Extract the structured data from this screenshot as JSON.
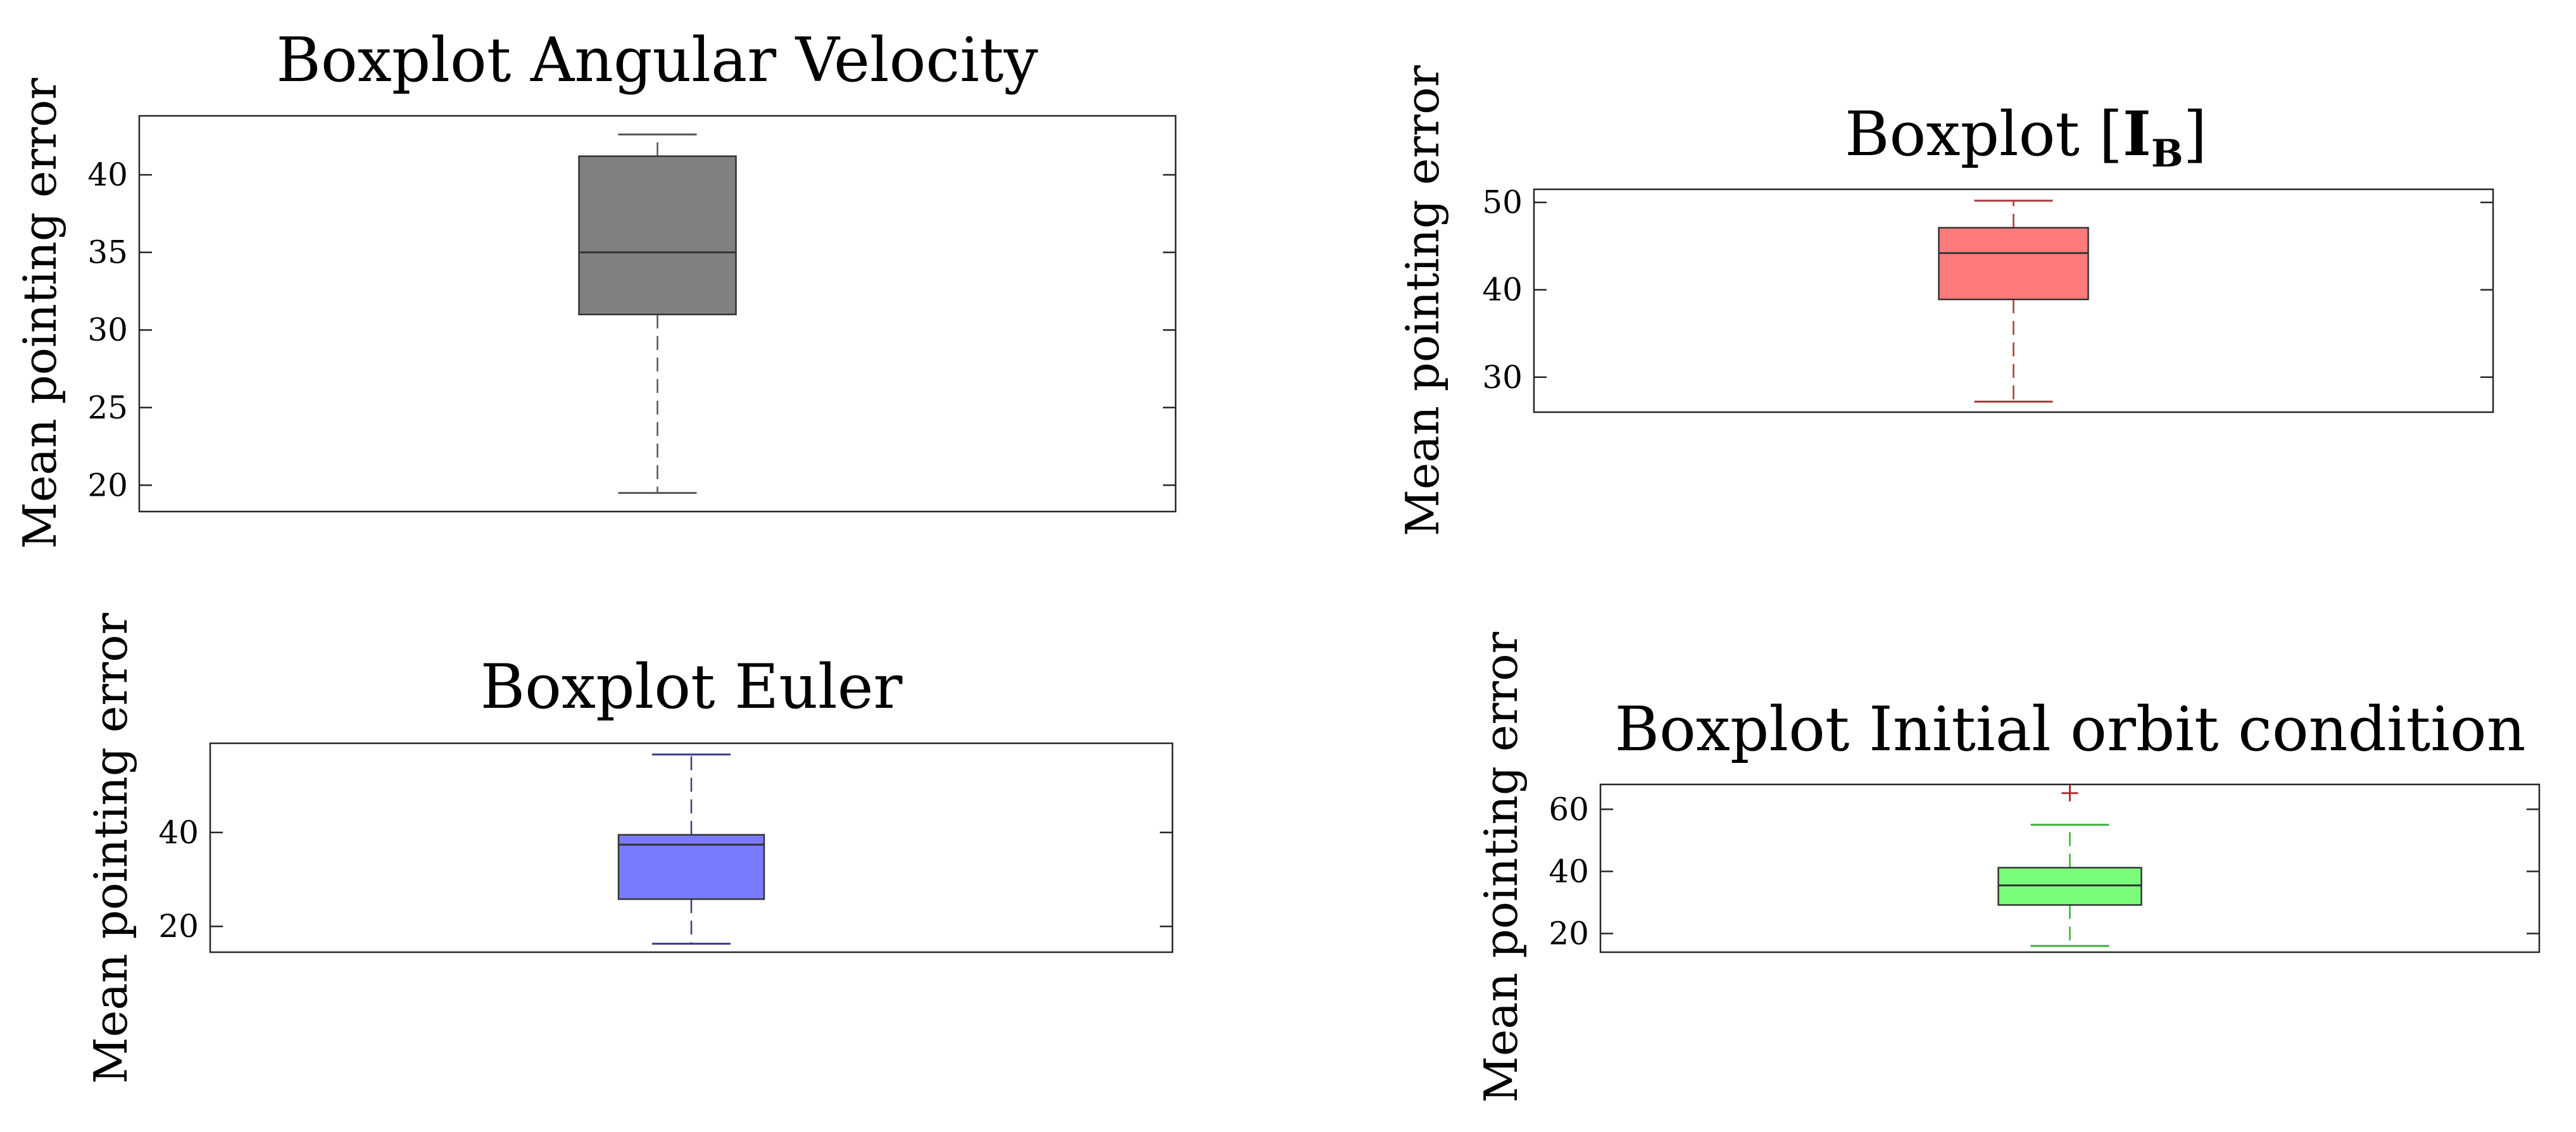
{
  "chart_data": [
    {
      "type": "boxplot",
      "title": "Boxplot Angular Velocity",
      "title_parts": [
        {
          "text": "Boxplot Angular Velocity"
        }
      ],
      "ylabel": "Mean pointing error",
      "xlabel": "",
      "ylim": [
        18.3,
        43.8
      ],
      "yticks": [
        20,
        25,
        30,
        35,
        40
      ],
      "color": "#808080",
      "edge_color": "#333333",
      "whisker_color": "#555555",
      "box": {
        "whisker_low": 19.5,
        "q1": 31.0,
        "median": 35.0,
        "q3": 41.2,
        "whisker_high": 42.6,
        "outliers": []
      }
    },
    {
      "type": "boxplot",
      "title": "Boxplot [IB]",
      "title_parts": [
        {
          "text": "Boxplot ["
        },
        {
          "text": "I",
          "style": "bold"
        },
        {
          "text": "B",
          "style": "bold-sub"
        },
        {
          "text": "]"
        }
      ],
      "ylabel": "Mean pointing error",
      "xlabel": "",
      "ylim": [
        26.0,
        51.5
      ],
      "yticks": [
        30,
        40,
        50
      ],
      "color": "#ff7b7b",
      "edge_color": "#333333",
      "whisker_color": "#a33a3a",
      "box": {
        "whisker_low": 27.2,
        "q1": 38.9,
        "median": 44.2,
        "q3": 47.1,
        "whisker_high": 50.2,
        "outliers": []
      }
    },
    {
      "type": "boxplot",
      "title": "Boxplot Euler",
      "title_parts": [
        {
          "text": "Boxplot Euler"
        }
      ],
      "ylabel": "Mean pointing error",
      "xlabel": "",
      "ylim": [
        14.5,
        59.0
      ],
      "yticks": [
        20,
        40
      ],
      "color": "#7b7bff",
      "edge_color": "#333333",
      "whisker_color": "#3a3a8a",
      "box": {
        "whisker_low": 16.3,
        "q1": 25.8,
        "median": 37.4,
        "q3": 39.5,
        "whisker_high": 56.6,
        "outliers": []
      }
    },
    {
      "type": "boxplot",
      "title": "Boxplot Initial orbit condition",
      "title_parts": [
        {
          "text": "Boxplot Initial orbit condition"
        }
      ],
      "ylabel": "Mean pointing error",
      "xlabel": "",
      "ylim": [
        14.0,
        68.0
      ],
      "yticks": [
        20,
        40,
        60
      ],
      "color": "#7bff7b",
      "edge_color": "#333333",
      "whisker_color": "#3faa3f",
      "box": {
        "whisker_low": 16.0,
        "q1": 29.2,
        "median": 35.5,
        "q3": 41.2,
        "whisker_high": 55.0,
        "outliers": [
          65.2
        ]
      }
    }
  ]
}
